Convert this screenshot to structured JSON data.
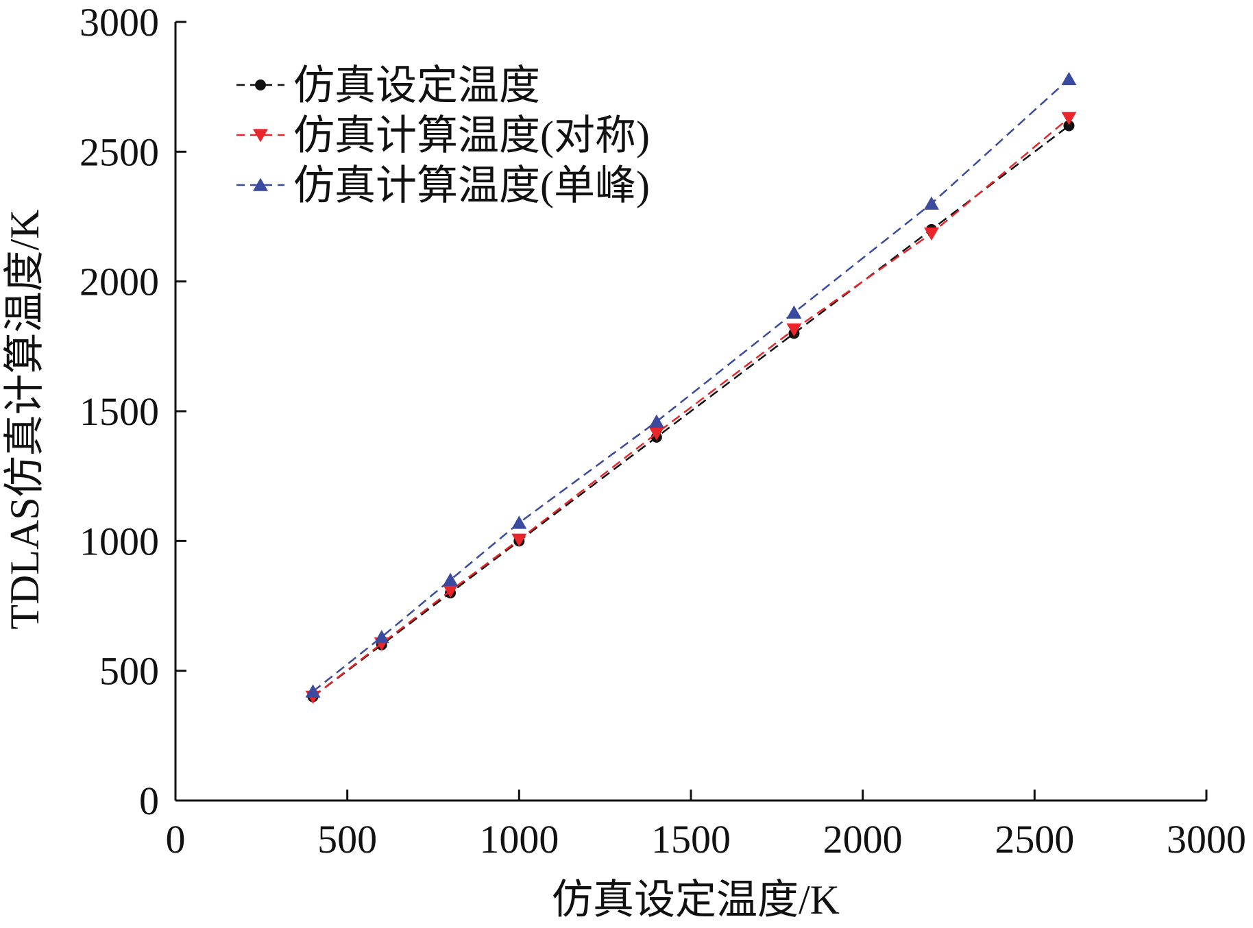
{
  "chart_data": {
    "type": "line",
    "title": "",
    "xlabel": "仿真设定温度/K",
    "ylabel": "TDLAS仿真计算温度/K",
    "xlim": [
      0,
      3000
    ],
    "ylim": [
      0,
      3000
    ],
    "xticks": [
      "0",
      "500",
      "1000",
      "1500",
      "2000",
      "2500",
      "3000"
    ],
    "yticks": [
      "0",
      "500",
      "1000",
      "1500",
      "2000",
      "2500",
      "3000"
    ],
    "x": [
      400,
      600,
      800,
      1000,
      1400,
      1800,
      2200,
      2600
    ],
    "grid": false,
    "legend_position": "top-left",
    "series": [
      {
        "name": "仿真设定温度",
        "color": "#111111",
        "marker": "circle",
        "line_style": "dashed",
        "values": [
          400,
          600,
          800,
          1000,
          1400,
          1800,
          2200,
          2600
        ]
      },
      {
        "name": "仿真计算温度(对称)",
        "color": "#e8262b",
        "marker": "triangle-down",
        "line_style": "dashed",
        "values": [
          400,
          605,
          808,
          1005,
          1415,
          1815,
          2185,
          2630
        ]
      },
      {
        "name": "仿真计算温度(单峰)",
        "color": "#3a4a9e",
        "marker": "triangle-up",
        "line_style": "dashed",
        "values": [
          420,
          630,
          850,
          1070,
          1460,
          1880,
          2300,
          2780
        ]
      }
    ]
  }
}
